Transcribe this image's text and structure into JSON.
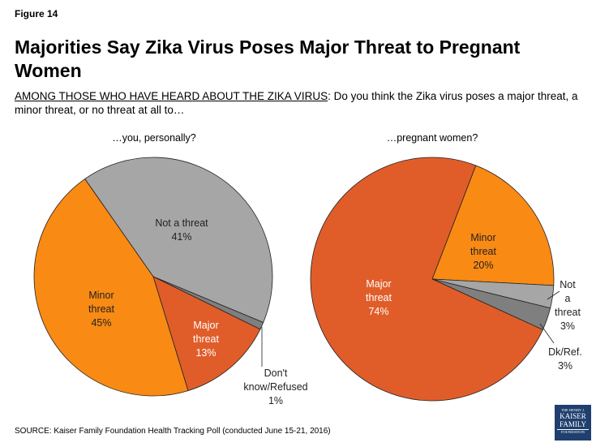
{
  "figure_label": "Figure 14",
  "title": "Majorities Say Zika Virus Poses Major Threat to Pregnant Women",
  "subtitle_prefix": "AMONG THOSE WHO HAVE HEARD ABOUT THE ZIKA VIRUS",
  "subtitle_rest": ": Do you think the Zika virus poses a major threat, a minor threat, or no threat at all to…",
  "source": "SOURCE: Kaiser Family Foundation Health Tracking Poll (conducted June 15-21, 2016)",
  "logo_text": "THE HENRY J. KAISER FAMILY FOUNDATION",
  "chart_data": [
    {
      "type": "pie",
      "title": "…you, personally?",
      "slices": [
        {
          "label": "Not a threat",
          "value": 41,
          "color": "#A6A6A6",
          "text": "41%"
        },
        {
          "label": "Don't know/Refused",
          "value": 1,
          "color": "#7F7F7F",
          "text": "1%"
        },
        {
          "label": "Major threat",
          "value": 13,
          "color": "#E05D2A",
          "text": "13%"
        },
        {
          "label": "Minor threat",
          "value": 45,
          "color": "#F98A14",
          "text": "45%"
        }
      ]
    },
    {
      "type": "pie",
      "title": "…pregnant women?",
      "slices": [
        {
          "label": "Minor threat",
          "value": 20,
          "color": "#F98A14",
          "text": "20%"
        },
        {
          "label": "Not a threat",
          "value": 3,
          "color": "#A6A6A6",
          "text": "3%"
        },
        {
          "label": "Dk/Ref.",
          "value": 3,
          "color": "#7F7F7F",
          "text": "3%"
        },
        {
          "label": "Major threat",
          "value": 74,
          "color": "#E05D2A",
          "text": "74%"
        }
      ]
    }
  ]
}
